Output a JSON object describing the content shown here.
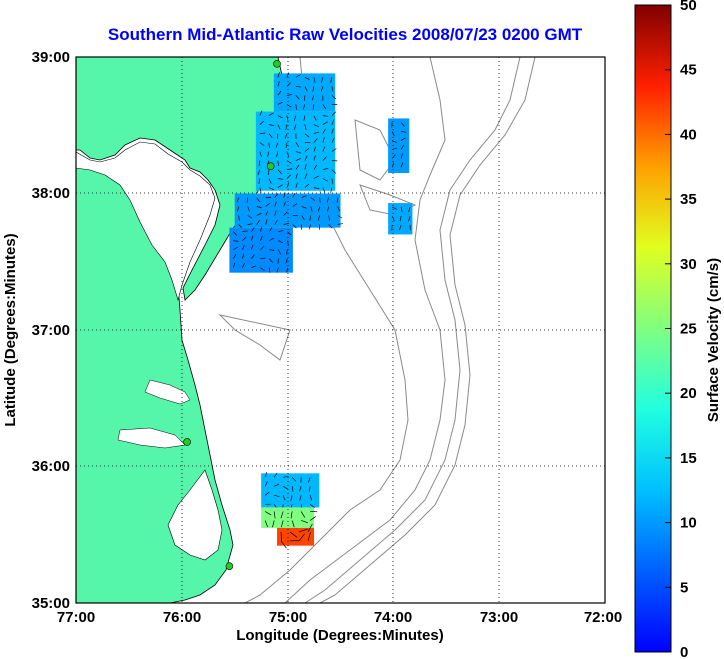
{
  "title": "Southern Mid-Atlantic Raw Velocities 2008/07/23 0200 GMT",
  "xlabel": "Longitude (Degrees:Minutes)",
  "ylabel": "Latitude (Degrees:Minutes)",
  "x_ticks": [
    "77:00",
    "76:00",
    "75:00",
    "74:00",
    "73:00",
    "72:00"
  ],
  "y_ticks": [
    "39:00",
    "38:00",
    "37:00",
    "36:00",
    "35:00"
  ],
  "colorbar": {
    "label": "Surface Velocity (cm/s)",
    "ticks": [
      "0",
      "5",
      "10",
      "15",
      "20",
      "25",
      "30",
      "35",
      "40",
      "45",
      "50"
    ],
    "range": [
      0,
      50
    ]
  },
  "extent": {
    "lon": [
      -77,
      -72
    ],
    "lat": [
      35,
      39
    ]
  },
  "colors": {
    "land": "#55f5aa",
    "water": "#ffffff",
    "title": "#0000ff",
    "contour": "#8a8a8a",
    "station": "#22cc22"
  },
  "stations": [
    {
      "lon": -75.1,
      "lat": 38.95
    },
    {
      "lon": -75.16,
      "lat": 38.2
    },
    {
      "lon": -75.95,
      "lat": 36.18
    },
    {
      "lon": -75.55,
      "lat": 35.27
    }
  ],
  "velocity_regions": [
    {
      "lon": [
        -75.13,
        -74.55
      ],
      "lat": [
        38.6,
        38.88
      ],
      "speed": 11
    },
    {
      "lon": [
        -75.3,
        -74.55
      ],
      "lat": [
        38.02,
        38.6
      ],
      "speed": 12
    },
    {
      "lon": [
        -75.5,
        -74.5
      ],
      "lat": [
        37.75,
        38.0
      ],
      "speed": 10
    },
    {
      "lon": [
        -75.55,
        -74.95
      ],
      "lat": [
        37.42,
        37.75
      ],
      "speed": 9
    },
    {
      "lon": [
        -74.05,
        -73.85
      ],
      "lat": [
        38.15,
        38.55
      ],
      "speed": 10
    },
    {
      "lon": [
        -74.05,
        -73.82
      ],
      "lat": [
        37.7,
        37.93
      ],
      "speed": 11
    },
    {
      "lon": [
        -75.25,
        -74.7
      ],
      "lat": [
        35.7,
        35.95
      ],
      "speed": 12
    },
    {
      "lon": [
        -75.25,
        -74.75
      ],
      "lat": [
        35.55,
        35.7
      ],
      "speed": 25
    },
    {
      "lon": [
        -75.1,
        -74.75
      ],
      "lat": [
        35.42,
        35.55
      ],
      "speed": 42
    }
  ]
}
